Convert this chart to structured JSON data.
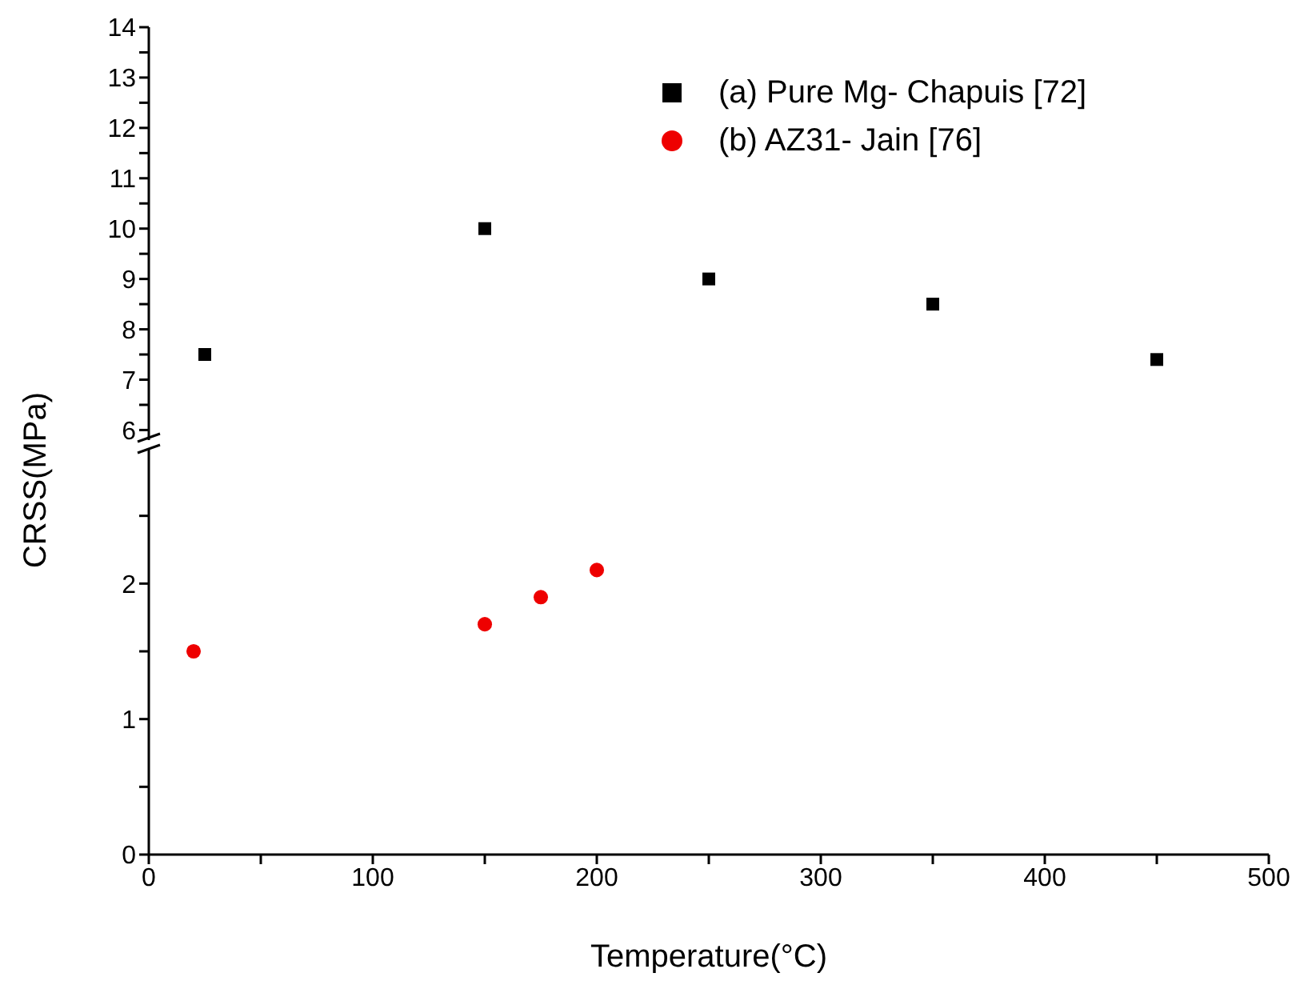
{
  "chart_data": [
    {
      "type": "scatter",
      "xlim": [
        0,
        500
      ],
      "ylim": [
        5.8,
        14
      ],
      "yticks": [
        6,
        {
          "value": 6.5,
          "label": null
        },
        7,
        {
          "value": 7.5,
          "label": null
        },
        8,
        {
          "value": 8.5,
          "label": null
        },
        9,
        {
          "value": 9.5,
          "label": null
        },
        10,
        {
          "value": 10.5,
          "label": null
        },
        11,
        {
          "value": 11.5,
          "label": null
        },
        12,
        {
          "value": 12.5,
          "label": null
        },
        13,
        {
          "value": 13.5,
          "label": null
        },
        14
      ],
      "tick_labels": "y",
      "legend": "top right",
      "grid": false,
      "series": [
        {
          "name": "(a) Pure Mg- Chapuis [72]",
          "color": "#000000",
          "marker": "square",
          "x": [
            25,
            150,
            250,
            350,
            450
          ],
          "values": [
            7.5,
            10,
            9,
            8.5,
            7.4
          ]
        }
      ]
    },
    {
      "type": "scatter",
      "xlabel": "Temperature(°C)",
      "ylabel": "CRSS(MPa)",
      "xlim": [
        0,
        500
      ],
      "xticks": [
        0,
        {
          "value": 50,
          "label": null
        },
        100,
        {
          "value": 150,
          "label": null
        },
        200,
        {
          "value": 250,
          "label": null
        },
        300,
        {
          "value": 350,
          "label": null
        },
        400,
        {
          "value": 450,
          "label": null
        },
        500
      ],
      "ylim": [
        0,
        3
      ],
      "yticks": [
        0,
        {
          "value": 0.5,
          "label": null
        },
        1,
        {
          "value": 1.5,
          "label": null
        },
        2,
        {
          "value": 2.5,
          "label": null
        }
      ],
      "grid": false,
      "series": [
        {
          "name": "(b) AZ31- Jain [76]",
          "color": "#ee0000",
          "marker": "circle",
          "x": [
            20,
            150,
            175,
            200
          ],
          "values": [
            1.5,
            1.7,
            1.9,
            2.1
          ]
        }
      ]
    }
  ]
}
